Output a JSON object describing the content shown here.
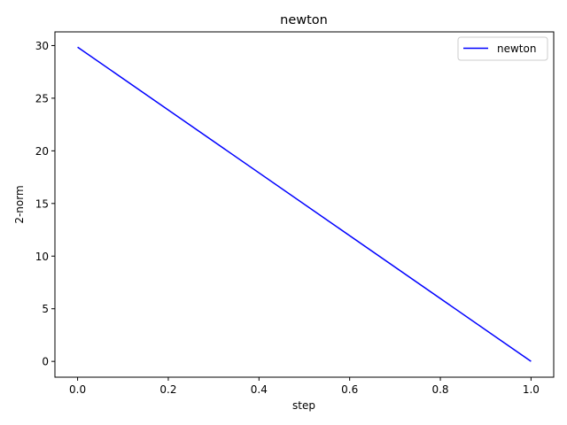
{
  "chart_data": {
    "type": "line",
    "title": "newton",
    "xlabel": "step",
    "ylabel": "2-norm",
    "xlim": [
      -0.05,
      1.05
    ],
    "ylim": [
      -1.5,
      31.3
    ],
    "xticks": [
      0.0,
      0.2,
      0.4,
      0.6,
      0.8,
      1.0
    ],
    "xtick_labels": [
      "0.0",
      "0.2",
      "0.4",
      "0.6",
      "0.8",
      "1.0"
    ],
    "yticks": [
      0,
      5,
      10,
      15,
      20,
      25,
      30
    ],
    "ytick_labels": [
      "0",
      "5",
      "10",
      "15",
      "20",
      "25",
      "30"
    ],
    "grid": false,
    "legend_position": "top-right",
    "series": [
      {
        "name": "newton",
        "color": "#0000ff",
        "x": [
          0.0,
          1.0
        ],
        "y": [
          29.85,
          0.0
        ]
      }
    ]
  }
}
